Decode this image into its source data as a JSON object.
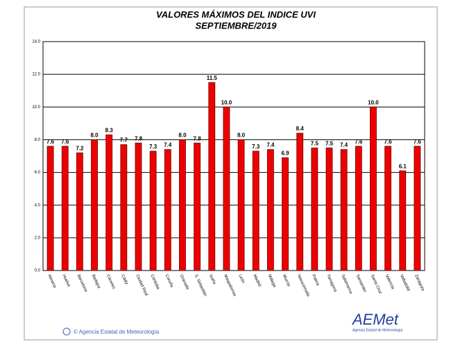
{
  "chart_data": {
    "type": "bar",
    "title": "VALORES MÁXIMOS DEL INDICE UVI",
    "subtitle": "SEPTIEMBRE/2019",
    "categories": [
      "Almería",
      "Huelva",
      "Barcelona",
      "Badajoz",
      "Cáceres",
      "Cádiz",
      "Ciudad Real",
      "Córdoba",
      "Coruña",
      "Granada",
      "S. Sebastián",
      "Izaña",
      "Maspalomas",
      "León",
      "Madrid",
      "Málaga",
      "Murcia",
      "Navacerrada",
      "Palma",
      "Tarragona",
      "Salamanca",
      "Santander",
      "Santa Cruz",
      "Valencia",
      "Valladolid",
      "Zaragoza"
    ],
    "values": [
      7.6,
      7.6,
      7.2,
      8.0,
      8.3,
      7.7,
      7.8,
      7.3,
      7.4,
      8.0,
      7.8,
      11.5,
      10.0,
      8.0,
      7.3,
      7.4,
      6.9,
      8.4,
      7.5,
      7.5,
      7.4,
      7.6,
      10.0,
      7.6,
      6.1,
      7.6
    ],
    "value_labels": [
      "7.6",
      "7.6",
      "7.2",
      "8.0",
      "8.3",
      "7.7",
      "7.8",
      "7.3",
      "7.4",
      "8.0",
      "7.8",
      "11.5",
      "10.0",
      "8.0",
      "7.3",
      "7.4",
      "6.9",
      "8.4",
      "7.5",
      "7.5",
      "7.4",
      "7.6",
      "10.0",
      "7.6",
      "6.1",
      "7.6"
    ],
    "color": "#ee0000",
    "ylim": [
      0,
      14
    ],
    "yticks": [
      {
        "value": 0,
        "label": "0.0"
      },
      {
        "value": 2,
        "label": "2.0"
      },
      {
        "value": 4,
        "label": "4.0"
      },
      {
        "value": 6,
        "label": "6.0"
      },
      {
        "value": 8,
        "label": "8.0"
      },
      {
        "value": 10,
        "label": "10.0"
      },
      {
        "value": 12,
        "label": "12.0"
      },
      {
        "value": 14,
        "label": "14.0"
      }
    ],
    "grid": true
  },
  "footer": "© Agencia Estatal de Meteorología",
  "logo": {
    "name": "AEMet",
    "caption": "Agencia Estatal de Meteorología"
  }
}
